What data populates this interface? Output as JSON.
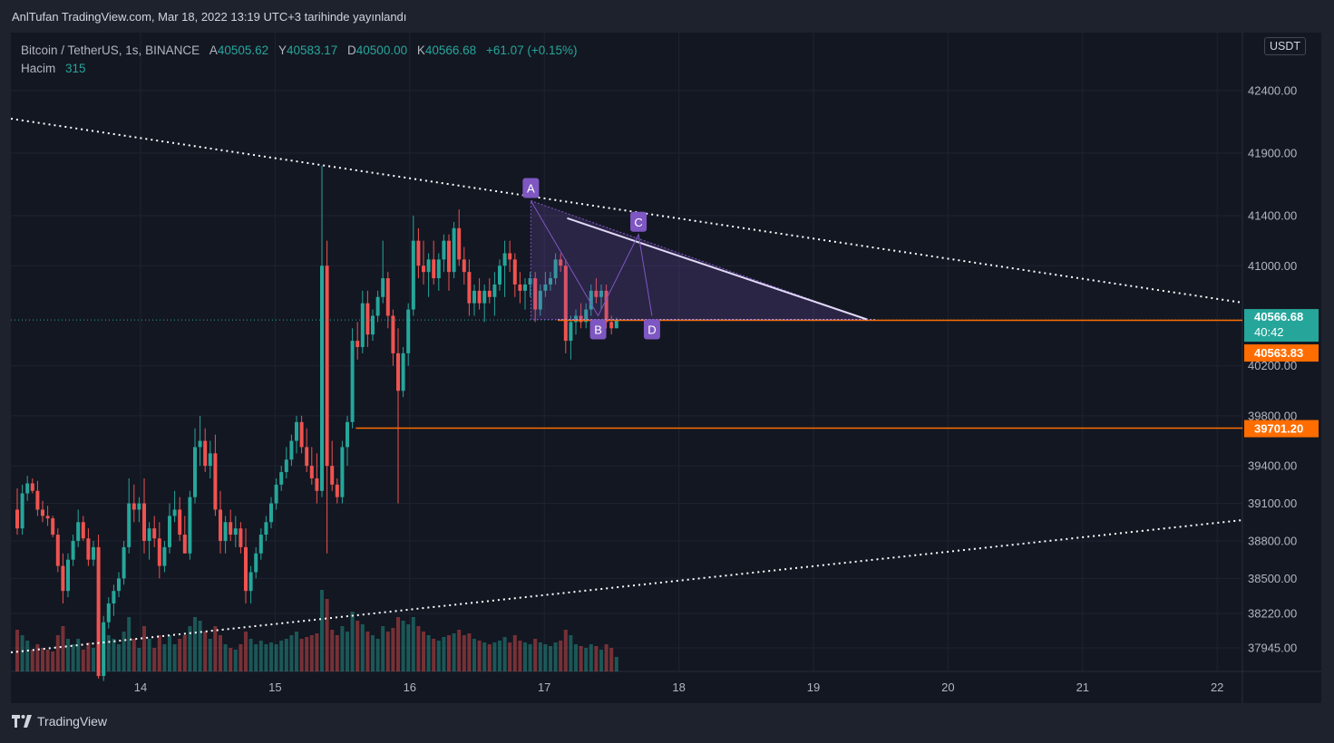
{
  "header": {
    "title": "AnlTufan TradingView.com, Mar 18, 2022 13:19 UTC+3 tarihinde yayınlandı"
  },
  "legend": {
    "symbol": "Bitcoin / TetherUS, 1s, BINANCE",
    "open_label": "A",
    "open": "40505.62",
    "high_label": "Y",
    "high": "40583.17",
    "low_label": "D",
    "low": "40500.00",
    "close_label": "K",
    "close": "40566.68",
    "change": "+61.07 (+0.15%)",
    "volume_label": "Hacim",
    "volume": "315"
  },
  "currency_button": "USDT",
  "footer": {
    "brand": "TradingView"
  },
  "colors": {
    "up": "#26a69a",
    "down": "#ef5350",
    "orange": "#ff6d00",
    "pattern": "#7e57c2",
    "price_tag": "#26a69a"
  },
  "chart_data": {
    "type": "candlestick",
    "y_axis_ticks": [
      "42400.00",
      "41900.00",
      "41400.00",
      "41000.00",
      "40200.00",
      "39800.00",
      "39400.00",
      "39100.00",
      "38800.00",
      "38500.00",
      "38220.00",
      "37945.00"
    ],
    "x_axis_ticks": [
      "14",
      "15",
      "16",
      "17",
      "18",
      "19",
      "20",
      "21",
      "22"
    ],
    "current_price": "40566.68",
    "countdown": "40:42",
    "price_labels": [
      "40563.83",
      "39701.20"
    ],
    "horizontal_levels": [
      40563.83,
      39701.2
    ],
    "pattern_points": [
      {
        "label": "A",
        "date": "16.9",
        "price": 41520
      },
      {
        "label": "B",
        "date": "17.4",
        "price": 40600
      },
      {
        "label": "C",
        "date": "17.7",
        "price": 41250
      },
      {
        "label": "D",
        "date": "17.8",
        "price": 40600
      }
    ],
    "candles": [
      [
        39050,
        39220,
        38850,
        38900,
        230
      ],
      [
        38900,
        39250,
        38850,
        39180,
        200
      ],
      [
        39180,
        39320,
        39120,
        39260,
        170
      ],
      [
        39260,
        39300,
        39180,
        39200,
        120
      ],
      [
        39200,
        39280,
        39000,
        39050,
        150
      ],
      [
        39050,
        39120,
        38950,
        39000,
        130
      ],
      [
        39000,
        39080,
        38920,
        38980,
        120
      ],
      [
        38980,
        39000,
        38830,
        38850,
        110
      ],
      [
        38850,
        38900,
        38550,
        38600,
        200
      ],
      [
        38600,
        38700,
        38300,
        38400,
        250
      ],
      [
        38400,
        38700,
        38350,
        38650,
        180
      ],
      [
        38650,
        38850,
        38600,
        38800,
        150
      ],
      [
        38800,
        39050,
        38750,
        38950,
        180
      ],
      [
        38950,
        39000,
        38800,
        38820,
        120
      ],
      [
        38820,
        38900,
        38600,
        38650,
        160
      ],
      [
        38650,
        38800,
        38600,
        38750,
        130
      ],
      [
        38750,
        38850,
        37700,
        37720,
        300
      ],
      [
        37720,
        38200,
        37680,
        38150,
        250
      ],
      [
        38150,
        38350,
        38100,
        38300,
        200
      ],
      [
        38300,
        38450,
        38200,
        38400,
        180
      ],
      [
        38400,
        38550,
        38350,
        38500,
        150
      ],
      [
        38500,
        38800,
        38450,
        38750,
        220
      ],
      [
        38750,
        39300,
        38700,
        39100,
        300
      ],
      [
        39100,
        39250,
        38950,
        39050,
        180
      ],
      [
        39050,
        39150,
        38950,
        39100,
        130
      ],
      [
        39100,
        39300,
        38700,
        38800,
        250
      ],
      [
        38800,
        38950,
        38650,
        38900,
        180
      ],
      [
        38900,
        39000,
        38750,
        38820,
        130
      ],
      [
        38820,
        38950,
        38500,
        38600,
        200
      ],
      [
        38600,
        38800,
        38550,
        38750,
        150
      ],
      [
        38750,
        39100,
        38700,
        39000,
        200
      ],
      [
        39000,
        39200,
        38950,
        39050,
        150
      ],
      [
        39050,
        39150,
        38800,
        38850,
        180
      ],
      [
        38850,
        39000,
        38700,
        38700,
        200
      ],
      [
        38700,
        39200,
        38650,
        39150,
        250
      ],
      [
        39150,
        39700,
        39100,
        39550,
        300
      ],
      [
        39550,
        39800,
        39400,
        39600,
        280
      ],
      [
        39600,
        39700,
        39350,
        39400,
        220
      ],
      [
        39400,
        39600,
        39300,
        39500,
        180
      ],
      [
        39500,
        39650,
        39000,
        39050,
        250
      ],
      [
        39050,
        39200,
        38700,
        38800,
        200
      ],
      [
        38800,
        39000,
        38700,
        38950,
        150
      ],
      [
        38950,
        39050,
        38800,
        38850,
        130
      ],
      [
        38850,
        39000,
        38750,
        38900,
        120
      ],
      [
        38900,
        38950,
        38700,
        38750,
        150
      ],
      [
        38750,
        38900,
        38300,
        38400,
        220
      ],
      [
        38400,
        38600,
        38300,
        38550,
        180
      ],
      [
        38550,
        38750,
        38500,
        38700,
        150
      ],
      [
        38700,
        38900,
        38650,
        38850,
        170
      ],
      [
        38850,
        39000,
        38800,
        38950,
        150
      ],
      [
        38950,
        39150,
        38900,
        39100,
        160
      ],
      [
        39100,
        39300,
        39050,
        39250,
        150
      ],
      [
        39250,
        39400,
        39200,
        39350,
        170
      ],
      [
        39350,
        39550,
        39300,
        39450,
        180
      ],
      [
        39450,
        39650,
        39400,
        39600,
        200
      ],
      [
        39600,
        39800,
        39500,
        39750,
        220
      ],
      [
        39750,
        39800,
        39500,
        39550,
        180
      ],
      [
        39550,
        39700,
        39350,
        39400,
        190
      ],
      [
        39400,
        39550,
        39250,
        39300,
        200
      ],
      [
        39300,
        39500,
        39100,
        39200,
        210
      ],
      [
        39200,
        41800,
        39150,
        41000,
        450
      ],
      [
        41000,
        41200,
        38700,
        39400,
        400
      ],
      [
        39400,
        39600,
        39200,
        39250,
        230
      ],
      [
        39250,
        39300,
        39100,
        39150,
        200
      ],
      [
        39150,
        39600,
        39100,
        39550,
        250
      ],
      [
        39550,
        39800,
        39400,
        39750,
        220
      ],
      [
        39750,
        40500,
        39700,
        40400,
        330
      ],
      [
        40400,
        40550,
        40250,
        40350,
        280
      ],
      [
        40350,
        40800,
        40300,
        40700,
        260
      ],
      [
        40700,
        40800,
        40350,
        40450,
        220
      ],
      [
        40450,
        40650,
        40400,
        40600,
        200
      ],
      [
        40600,
        40800,
        40550,
        40750,
        180
      ],
      [
        40750,
        41200,
        40700,
        40900,
        250
      ],
      [
        40900,
        40950,
        40500,
        40600,
        220
      ],
      [
        40600,
        40650,
        40200,
        40300,
        240
      ],
      [
        40300,
        40500,
        39100,
        40000,
        300
      ],
      [
        40000,
        40350,
        39950,
        40300,
        280
      ],
      [
        40300,
        40700,
        40200,
        40650,
        260
      ],
      [
        40650,
        41400,
        40600,
        41200,
        300
      ],
      [
        41200,
        41300,
        40900,
        41000,
        250
      ],
      [
        41000,
        41200,
        40850,
        40950,
        220
      ],
      [
        40950,
        41100,
        40750,
        41050,
        200
      ],
      [
        41050,
        41200,
        40850,
        40900,
        180
      ],
      [
        40900,
        41100,
        40800,
        41050,
        170
      ],
      [
        41050,
        41250,
        40950,
        41200,
        190
      ],
      [
        41200,
        41250,
        40800,
        40950,
        200
      ],
      [
        40950,
        41350,
        40900,
        41300,
        210
      ],
      [
        41300,
        41450,
        41000,
        41050,
        230
      ],
      [
        41050,
        41150,
        40850,
        40950,
        200
      ],
      [
        40950,
        41050,
        40600,
        40700,
        210
      ],
      [
        40700,
        40850,
        40600,
        40800,
        180
      ],
      [
        40800,
        40900,
        40650,
        40700,
        170
      ],
      [
        40700,
        40850,
        40550,
        40800,
        160
      ],
      [
        40800,
        40900,
        40700,
        40750,
        150
      ],
      [
        40750,
        40950,
        40600,
        40850,
        160
      ],
      [
        40850,
        41050,
        40800,
        41000,
        170
      ],
      [
        41000,
        41200,
        40750,
        41100,
        190
      ],
      [
        41100,
        41200,
        40950,
        41050,
        160
      ],
      [
        41050,
        41100,
        40750,
        40850,
        200
      ],
      [
        40850,
        40950,
        40700,
        40800,
        170
      ],
      [
        40800,
        40900,
        40650,
        40850,
        160
      ],
      [
        40850,
        40950,
        40750,
        40900,
        150
      ],
      [
        40900,
        40950,
        40550,
        40650,
        180
      ],
      [
        40650,
        40850,
        40600,
        40800,
        160
      ],
      [
        40800,
        40950,
        40750,
        40850,
        150
      ],
      [
        40850,
        40950,
        40800,
        40900,
        140
      ],
      [
        40900,
        41100,
        40850,
        41050,
        160
      ],
      [
        41050,
        41100,
        40950,
        41000,
        170
      ],
      [
        41000,
        41050,
        40300,
        40400,
        230
      ],
      [
        40400,
        40600,
        40250,
        40550,
        200
      ],
      [
        40550,
        40650,
        40450,
        40600,
        150
      ],
      [
        40600,
        40700,
        40500,
        40550,
        140
      ],
      [
        40550,
        40700,
        40500,
        40650,
        130
      ],
      [
        40650,
        40850,
        40600,
        40800,
        150
      ],
      [
        40800,
        40900,
        40700,
        40750,
        140
      ],
      [
        40750,
        40850,
        40650,
        40800,
        120
      ],
      [
        40800,
        40850,
        40500,
        40550,
        150
      ],
      [
        40550,
        40600,
        40450,
        40500,
        130
      ],
      [
        40500,
        40583,
        40500,
        40566,
        80
      ]
    ]
  }
}
